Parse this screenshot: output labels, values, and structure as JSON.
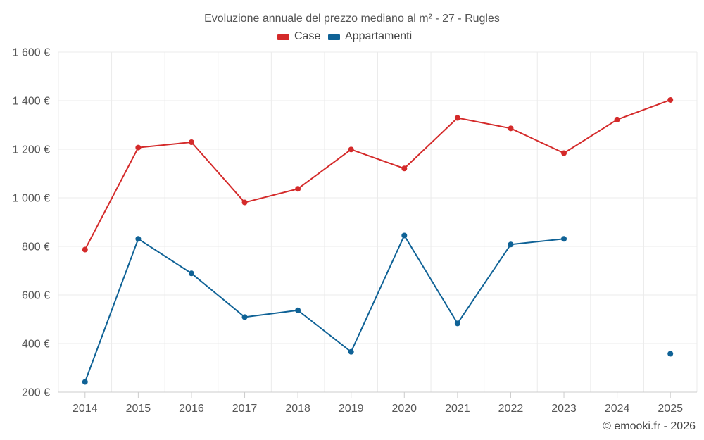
{
  "chart_data": {
    "type": "line",
    "title": "Evoluzione annuale del prezzo mediano al m² - 27 - Rugles",
    "x": [
      "2014",
      "2015",
      "2016",
      "2017",
      "2018",
      "2019",
      "2020",
      "2021",
      "2022",
      "2023",
      "2024",
      "2025"
    ],
    "series": [
      {
        "name": "Case",
        "color": "#d42a2a",
        "values": [
          787,
          1207,
          1229,
          981,
          1037,
          1199,
          1121,
          1329,
          1286,
          1184,
          1322,
          1403
        ]
      },
      {
        "name": "Appartamenti",
        "color": "#0f6296",
        "values": [
          242,
          831,
          689,
          509,
          537,
          366,
          845,
          483,
          808,
          831,
          null,
          358
        ]
      }
    ],
    "ylim": [
      200,
      1600
    ],
    "yticks": [
      200,
      400,
      600,
      800,
      1000,
      1200,
      1400,
      1600
    ],
    "ytick_labels": [
      "200 €",
      "400 €",
      "600 €",
      "800 €",
      "1 000 €",
      "1 200 €",
      "1 400 €",
      "1 600 €"
    ],
    "grid": true,
    "legend_position": "top-center",
    "xlabel": "",
    "ylabel": ""
  },
  "credit": "© emooki.fr - 2026"
}
